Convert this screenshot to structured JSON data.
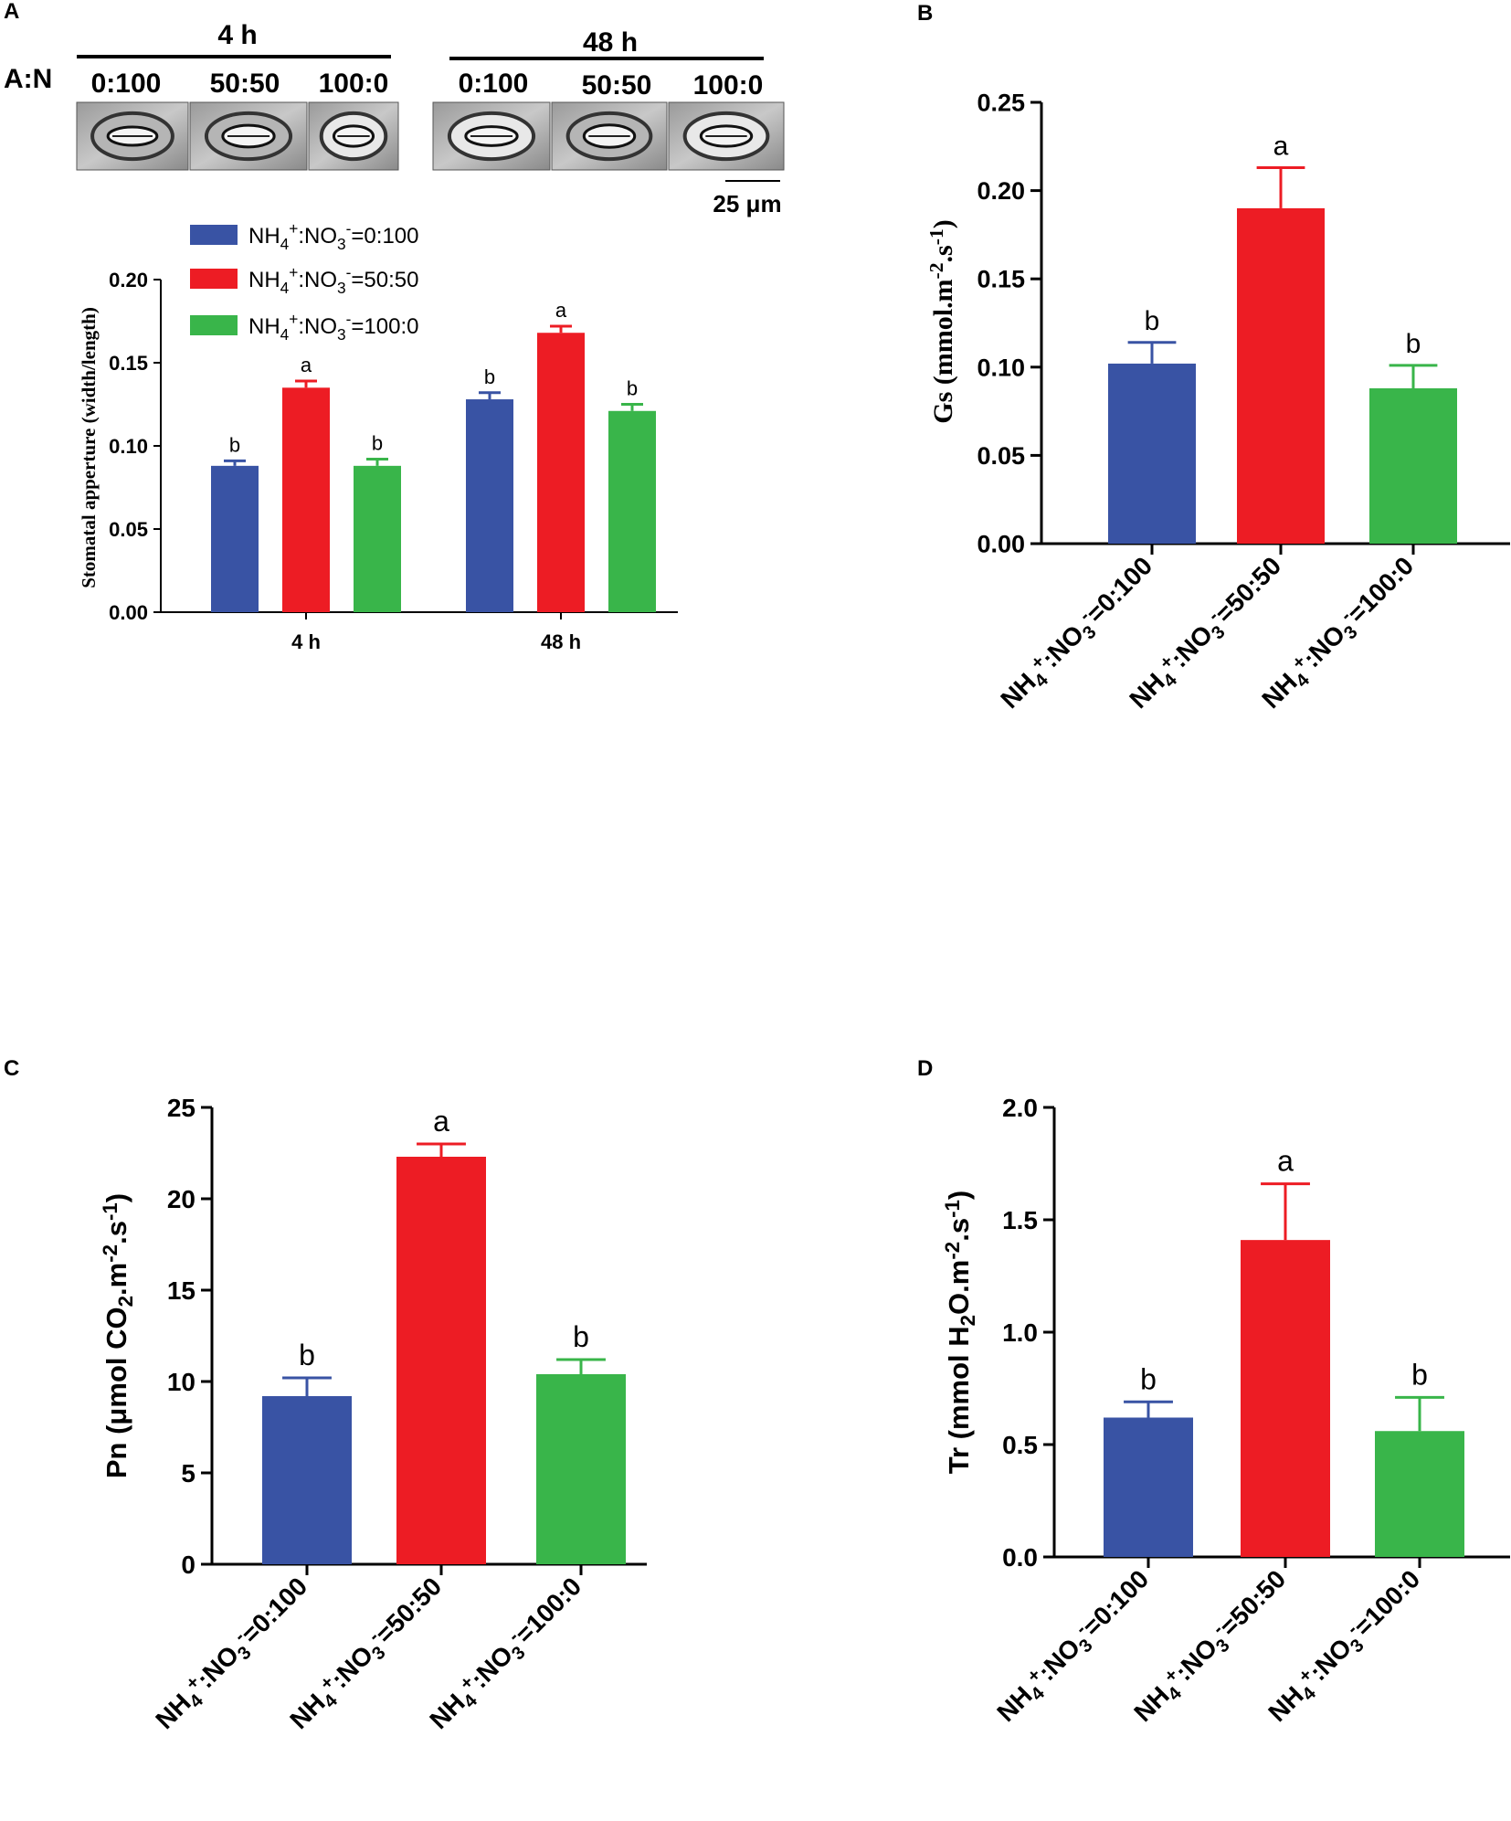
{
  "figure": {
    "colors": {
      "blue": "#3953a4",
      "red": "#ed1c24",
      "green": "#39b54a",
      "axis": "#000000"
    },
    "series_names": [
      "NH4+:NO3-=0:100",
      "NH4+:NO3-=50:50",
      "NH4+:NO3-=100:0"
    ],
    "panel_labels": [
      "A",
      "B",
      "C",
      "D"
    ]
  },
  "micrographs": {
    "row_label": "A:N",
    "time_groups": [
      "4 h",
      "48 h"
    ],
    "ratio_labels": [
      "0:100",
      "50:50",
      "100:0",
      "0:100",
      "50:50",
      "100:0"
    ],
    "scale_bar_label": "25 μm"
  },
  "chart_data": [
    {
      "panel": "A",
      "type": "bar",
      "title": "",
      "xlabel": "",
      "ylabel": "Stomatal apperture (width/length)",
      "categories": [
        "4 h",
        "48 h"
      ],
      "ylim": [
        0,
        0.2
      ],
      "yticks": [
        "0.00",
        "0.05",
        "0.10",
        "0.15",
        "0.20"
      ],
      "legend": {
        "position": "top-left",
        "entries": [
          "NH4+:NO3-=0:100",
          "NH4+:NO3-=50:50",
          "NH4+:NO3-=100:0"
        ]
      },
      "series": [
        {
          "name": "NH4+:NO3-=0:100",
          "values": [
            0.088,
            0.128
          ],
          "errors": [
            0.003,
            0.004
          ],
          "letters": [
            "b",
            "b"
          ]
        },
        {
          "name": "NH4+:NO3-=50:50",
          "values": [
            0.135,
            0.168
          ],
          "errors": [
            0.004,
            0.004
          ],
          "letters": [
            "a",
            "a"
          ]
        },
        {
          "name": "NH4+:NO3-=100:0",
          "values": [
            0.088,
            0.121
          ],
          "errors": [
            0.004,
            0.004
          ],
          "letters": [
            "b",
            "b"
          ]
        }
      ]
    },
    {
      "panel": "B",
      "type": "bar",
      "ylabel": "Gs (mmol.m-2.s-1)",
      "categories": [
        "NH4+:NO3-=0:100",
        "NH4+:NO3-=50:50",
        "NH4+:NO3-=100:0"
      ],
      "values": [
        0.102,
        0.19,
        0.088
      ],
      "errors": [
        0.012,
        0.023,
        0.013
      ],
      "letters": [
        "b",
        "a",
        "b"
      ],
      "ylim": [
        0,
        0.25
      ],
      "yticks": [
        "0.00",
        "0.05",
        "0.10",
        "0.15",
        "0.20",
        "0.25"
      ]
    },
    {
      "panel": "C",
      "type": "bar",
      "ylabel": "Pn (μmol CO2.m-2.s-1)",
      "categories": [
        "NH4+:NO3-=0:100",
        "NH4+:NO3-=50:50",
        "NH4+:NO3-=100:0"
      ],
      "values": [
        9.2,
        22.3,
        10.4
      ],
      "errors": [
        1.0,
        0.7,
        0.8
      ],
      "letters": [
        "b",
        "a",
        "b"
      ],
      "ylim": [
        0,
        25
      ],
      "yticks": [
        "0",
        "5",
        "10",
        "15",
        "20",
        "25"
      ]
    },
    {
      "panel": "D",
      "type": "bar",
      "ylabel": "Tr (mmol H2O.m-2.s-1)",
      "categories": [
        "NH4+:NO3-=0:100",
        "NH4+:NO3-=50:50",
        "NH4+:NO3-=100:0"
      ],
      "values": [
        0.62,
        1.41,
        0.56
      ],
      "errors": [
        0.07,
        0.25,
        0.15
      ],
      "letters": [
        "b",
        "a",
        "b"
      ],
      "ylim": [
        0,
        2.0
      ],
      "yticks": [
        "0.0",
        "0.5",
        "1.0",
        "1.5",
        "2.0"
      ]
    }
  ]
}
